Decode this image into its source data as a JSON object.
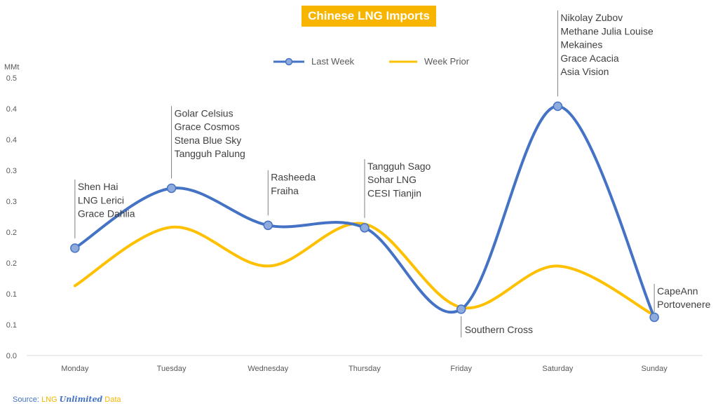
{
  "chart_data": {
    "type": "line",
    "title": "Chinese LNG Imports",
    "ylabel": "MMt",
    "categories": [
      "Monday",
      "Tuesday",
      "Wednesday",
      "Thursday",
      "Friday",
      "Saturday",
      "Sunday"
    ],
    "y_tick_labels": [
      "0.0",
      "0.1",
      "0.1",
      "0.2",
      "0.2",
      "0.3",
      "0.3",
      "0.4",
      "0.4",
      "0.5"
    ],
    "ylim": [
      0,
      0.45
    ],
    "grid": false,
    "legend_position": "top",
    "series": [
      {
        "name": "Last Week",
        "color": "#4472C4",
        "values": [
          0.174,
          0.271,
          0.211,
          0.207,
          0.075,
          0.404,
          0.062
        ],
        "markers": true
      },
      {
        "name": "Week Prior",
        "color": "#FFC000",
        "values": [
          0.113,
          0.208,
          0.145,
          0.213,
          0.078,
          0.145,
          0.065
        ],
        "markers": false
      }
    ],
    "annotations": [
      {
        "category": "Monday",
        "lines": [
          "Shen Hai",
          "LNG Lerici",
          "Grace Dahlia"
        ],
        "side": "above"
      },
      {
        "category": "Tuesday",
        "lines": [
          "Golar Celsius",
          "Grace Cosmos",
          "Stena Blue Sky",
          "Tangguh Palung"
        ],
        "side": "above"
      },
      {
        "category": "Wednesday",
        "lines": [
          "Rasheeda",
          "Fraiha"
        ],
        "side": "above"
      },
      {
        "category": "Thursday",
        "lines": [
          "Tangguh Sago",
          "Sohar LNG",
          "CESI Tianjin"
        ],
        "side": "above"
      },
      {
        "category": "Friday",
        "lines": [
          "Southern Cross"
        ],
        "side": "below"
      },
      {
        "category": "Saturday",
        "lines": [
          "Nikolay Zubov",
          "Methane Julia Louise",
          "Mekaines",
          "Grace Acacia",
          "Asia Vision"
        ],
        "side": "above"
      },
      {
        "category": "Sunday",
        "lines": [
          "CapeAnn",
          "Portovenere"
        ],
        "side": "above"
      }
    ]
  },
  "source": {
    "prefix": "Source: ",
    "lng": "LNG ",
    "unlimited": "Unlimited",
    "data": " Data"
  }
}
